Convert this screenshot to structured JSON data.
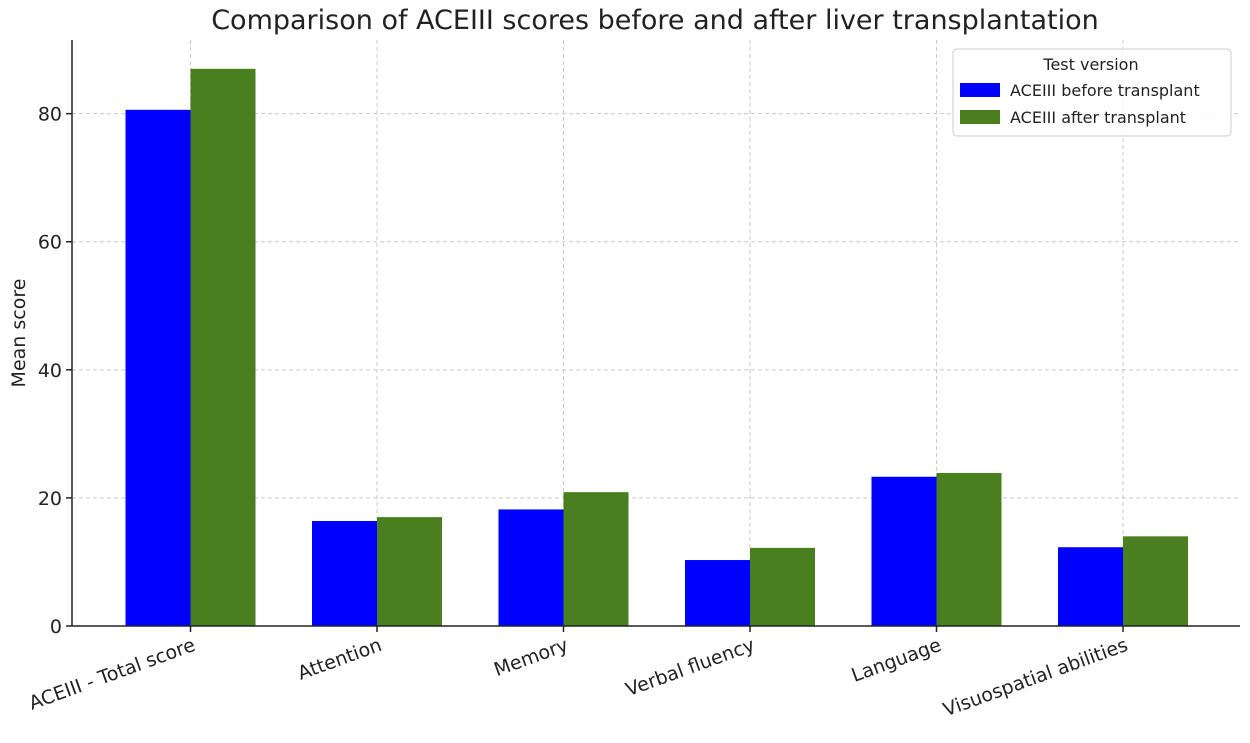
{
  "chart_data": {
    "type": "bar",
    "title": "Comparison of ACEIII scores before and after liver transplantation",
    "xlabel": "",
    "ylabel": "Mean score",
    "categories": [
      "ACEIII - Total score",
      "Attention",
      "Memory",
      "Verbal fluency",
      "Language",
      "Visuospatial abilities"
    ],
    "series": [
      {
        "name": "ACEIII before transplant",
        "color": "#0000ff",
        "values": [
          80.6,
          16.4,
          18.2,
          10.3,
          23.3,
          12.3
        ]
      },
      {
        "name": "ACEIII after transplant",
        "color": "#4a7f1f",
        "values": [
          87.0,
          17.0,
          20.9,
          12.2,
          23.9,
          14.0
        ]
      }
    ],
    "ylim": [
      0,
      91.5
    ],
    "yticks": [
      0,
      20,
      40,
      60,
      80
    ],
    "grid": true,
    "legend": {
      "title": "Test version",
      "placement": "top-right"
    }
  }
}
